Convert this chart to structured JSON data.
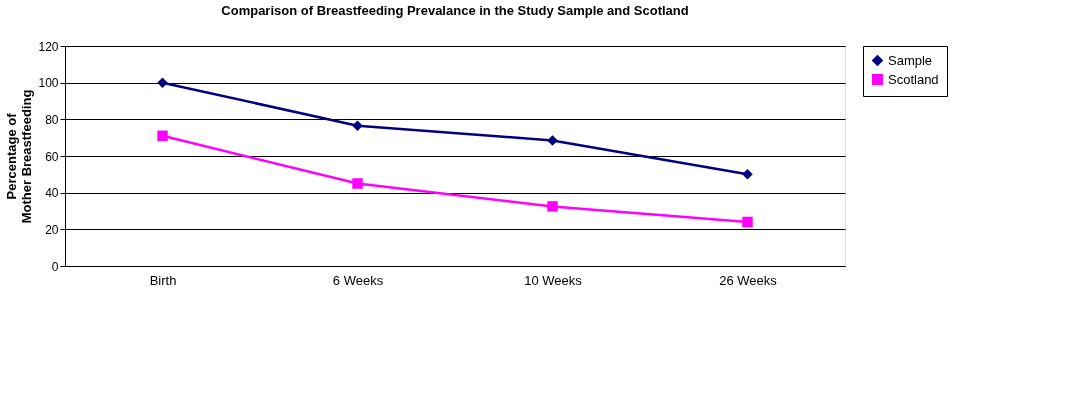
{
  "chart_data": {
    "type": "line",
    "title": "Comparison of Breastfeeding Prevalance in the Study Sample and Scotland",
    "ylabel": "Percentage of Mother Breastfeeding",
    "categories": [
      "Birth",
      "6 Weeks",
      "10 Weeks",
      "26 Weeks"
    ],
    "series": [
      {
        "name": "Sample",
        "color": "#000080",
        "marker": "diamond",
        "values": [
          100,
          76.5,
          68.5,
          50
        ]
      },
      {
        "name": "Scotland",
        "color": "#ff00ff",
        "marker": "square",
        "values": [
          71,
          45,
          32.5,
          24
        ]
      }
    ],
    "ylim": [
      0,
      120
    ],
    "yticks": [
      0,
      20,
      40,
      60,
      80,
      100,
      120
    ],
    "grid": "y",
    "legend": "right"
  }
}
